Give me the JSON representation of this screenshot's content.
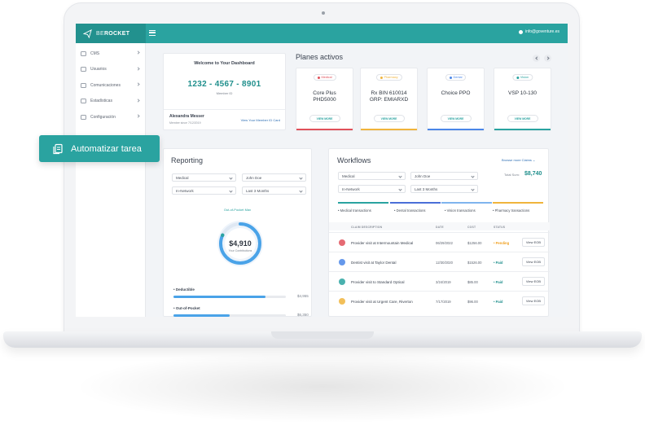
{
  "brand": {
    "prefix": "BE",
    "name": "ROCKET"
  },
  "header": {
    "user_email": "info@goventure.es"
  },
  "sidebar": {
    "items": [
      {
        "label": "CMS",
        "icon": "cms-icon"
      },
      {
        "label": "Usuarios",
        "icon": "users-icon"
      },
      {
        "label": "Comunicaciones",
        "icon": "chat-icon"
      },
      {
        "label": "Estadísticas",
        "icon": "stats-icon"
      },
      {
        "label": "Configuración",
        "icon": "gear-icon"
      }
    ]
  },
  "badge": {
    "label": "Automatizar tarea",
    "icon": "task-icon"
  },
  "welcome": {
    "title": "Welcome to Your Dashboard",
    "member_id": "1232 - 4567 - 8901",
    "member_id_label": "Member ID",
    "member_name": "Alexandra Messer",
    "member_since": "Member since 7/12/2019",
    "id_card_link": "View Your Member ID Card"
  },
  "plans": {
    "title": "Planes activos",
    "items": [
      {
        "tag": "Medical",
        "name_line1": "Core Plus",
        "name_line2": "PHD5000",
        "button": "VIEW MORE",
        "color": "#e0505a"
      },
      {
        "tag": "Pharmacy",
        "name_line1": "Rx BIN 610014",
        "name_line2": "GRP: EMIARXD",
        "button": "VIEW MORE",
        "color": "#f0b43c"
      },
      {
        "tag": "Dental",
        "name_line1": "Choice PPO",
        "name_line2": "",
        "button": "VIEW MORE",
        "color": "#4a86e8"
      },
      {
        "tag": "Vision",
        "name_line1": "VSP 10-130",
        "name_line2": "",
        "button": "VIEW MORE",
        "color": "#2aa3a0"
      }
    ]
  },
  "reporting": {
    "title": "Reporting",
    "filters": [
      "Medical",
      "John Doe",
      "In-Network",
      "Last 3 Months"
    ],
    "oop_label": "Out-of-Pocket Max",
    "donut_value": "$4,910",
    "donut_sub": "Your Contributions",
    "donut_progress": 0.82,
    "metrics": [
      {
        "label": "Deductible",
        "value": "$4,955",
        "progress": 0.82
      },
      {
        "label": "Out-of-Pocket",
        "value": "$6,350",
        "progress": 0.5
      }
    ]
  },
  "workflows": {
    "title": "Workflows",
    "browse_label": "Browse more Claims",
    "filters": [
      "Medical",
      "John Doe",
      "In-Network",
      "Last 3 Months"
    ],
    "total_label": "Total Sum:",
    "total_value": "$8,740",
    "tabs": [
      {
        "label": "Medical transactions",
        "color": "#2aa3a0"
      },
      {
        "label": "Dental transactions",
        "color": "#4a6fd8"
      },
      {
        "label": "Vision transactions",
        "color": "#7fb4ee"
      },
      {
        "label": "Pharmacy transactions",
        "color": "#f0b43c"
      }
    ],
    "columns": [
      "CLAIM DESCRIPTION",
      "DATE",
      "COST",
      "STATUS"
    ],
    "rows": [
      {
        "desc": "Provider visit at Intermountain Medical",
        "date": "06/29/2022",
        "cost": "$1256.00",
        "status": "Pending",
        "status_color": "#f0a020",
        "eob": "View EOB",
        "icon_color": "#e0505a",
        "icon": "medical-icon"
      },
      {
        "desc": "Dentist visit at Taylor Dental",
        "date": "12/30/2020",
        "cost": "$1526.00",
        "status": "Paid",
        "status_color": "#1f8f8c",
        "eob": "View EOB",
        "icon_color": "#4a86e8",
        "icon": "tooth-icon"
      },
      {
        "desc": "Provider visit to Standard Optical",
        "date": "3/24/2019",
        "cost": "$85.00",
        "status": "Paid",
        "status_color": "#1f8f8c",
        "eob": "View EOB",
        "icon_color": "#2aa3a0",
        "icon": "eye-icon"
      },
      {
        "desc": "Provider visit at Urgent Care, Riverton",
        "date": "7/17/2019",
        "cost": "$96.00",
        "status": "Paid",
        "status_color": "#1f8f8c",
        "eob": "View EOB",
        "icon_color": "#f0b43c",
        "icon": "pill-icon"
      }
    ]
  }
}
